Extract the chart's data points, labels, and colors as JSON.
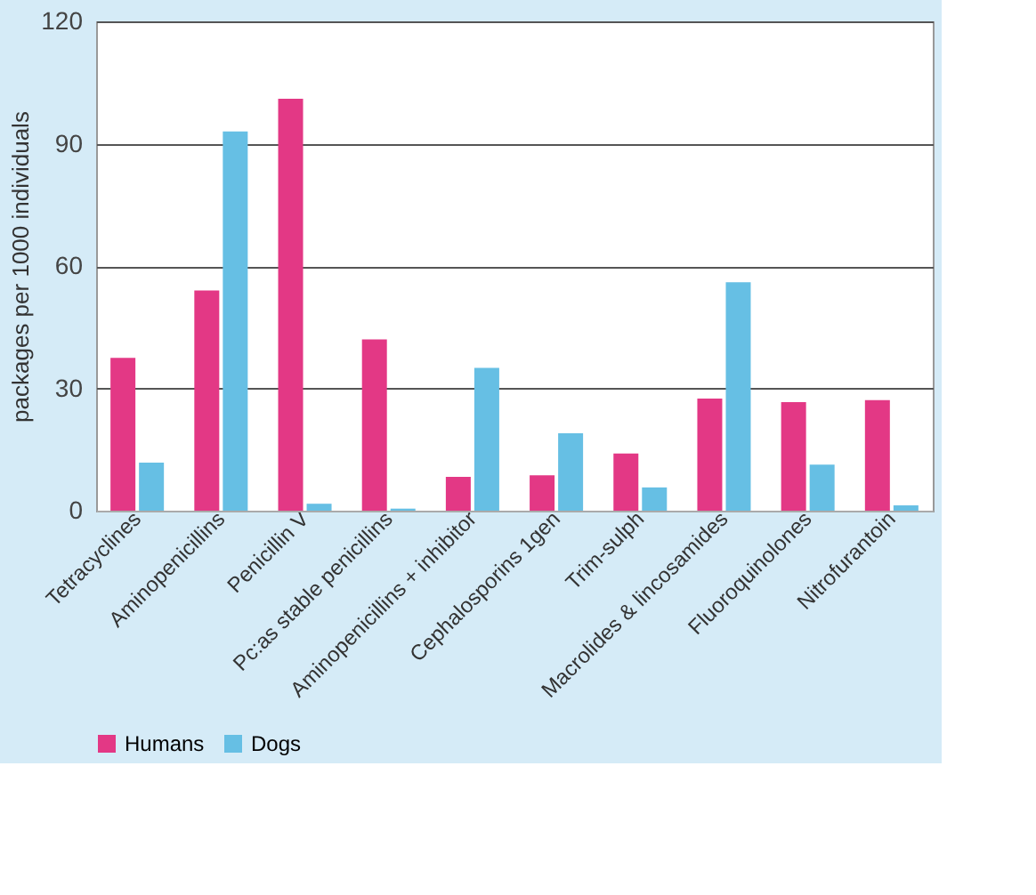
{
  "chart_data": {
    "type": "bar",
    "ylabel": "packages per 1000 individuals",
    "categories": [
      "Tetracyclines",
      "Aminopenicillins",
      "Penicillin V",
      "Pc:as stable penicillins",
      "Aminopenicillins + inhibitor",
      "Cephalosporins 1gen",
      "Trim-sulph",
      "Macrolides & lincosamides",
      "Fluoroquinolones",
      "Nitrofurantoin"
    ],
    "series": [
      {
        "name": "Humans",
        "color": "#e33885",
        "values": [
          37.5,
          54,
          101,
          42,
          8.3,
          8.7,
          14,
          27.5,
          26.6,
          27.1
        ]
      },
      {
        "name": "Dogs",
        "color": "#66bfe4",
        "values": [
          11.8,
          93,
          1.7,
          0.5,
          35,
          19,
          5.7,
          56,
          11.3,
          1.3
        ]
      }
    ],
    "ylim": [
      0,
      120
    ],
    "yticks": [
      0,
      30,
      60,
      90,
      120
    ],
    "grid": "y",
    "legend": "bottom"
  }
}
